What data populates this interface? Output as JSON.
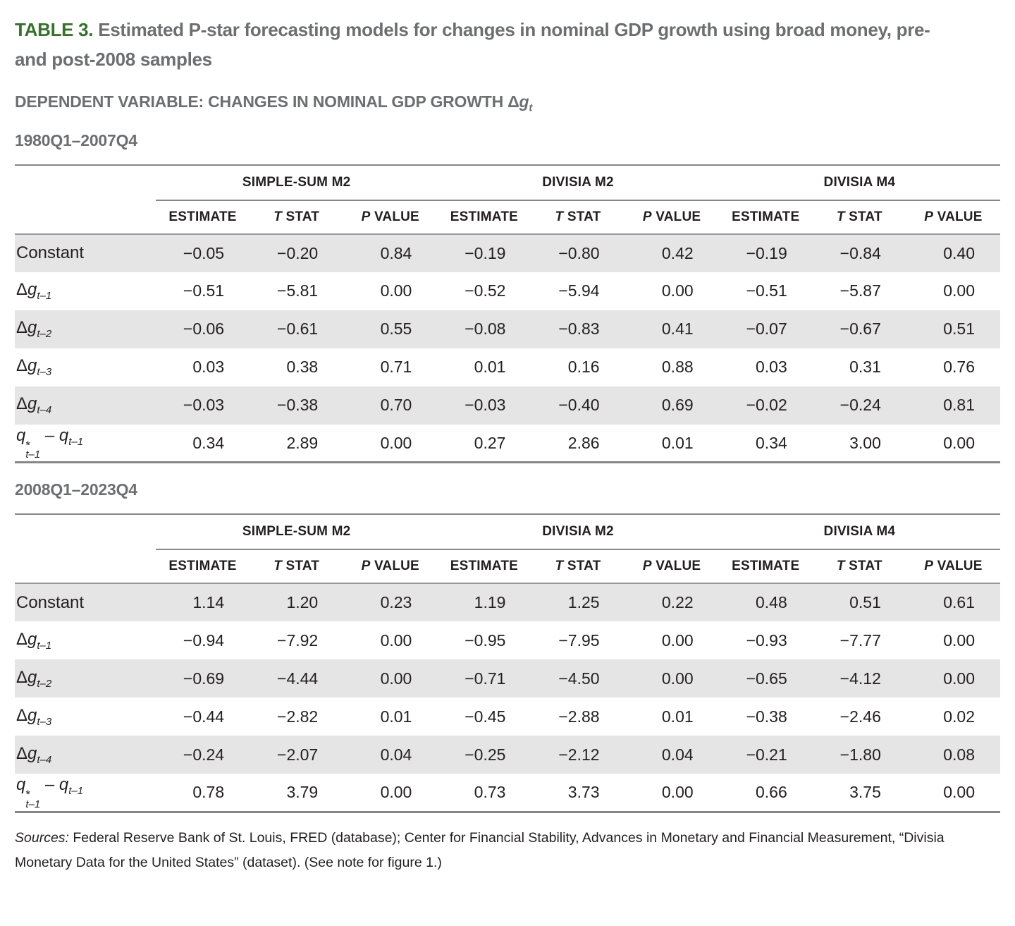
{
  "header": {
    "table_label": "TABLE 3.",
    "title": "Estimated P-star forecasting models for changes in nominal GDP growth using broad money, pre- and post-2008 samples",
    "dependent_variable": "DEPENDENT VARIABLE: CHANGES IN NOMINAL GDP GROWTH ",
    "symbol": {
      "delta": "Δ",
      "base": "g",
      "sub": "t"
    }
  },
  "colors": {
    "accent_green": "#37712d",
    "heading_gray": "#6d6e71",
    "text_black": "#231f20",
    "row_shade": "#e5e5e5",
    "rule_gray": "#85878a"
  },
  "tables": [
    {
      "id": "table-1980q1-2007q4",
      "section_heading": "1980Q1–2007Q4",
      "group_headers": [
        "SIMPLE-SUM M2",
        "DIVISIA M2",
        "DIVISIA M4"
      ],
      "sub_headers": [
        {
          "italic": "",
          "text": "ESTIMATE"
        },
        {
          "italic": "T",
          "text": " STAT"
        },
        {
          "italic": "P",
          "text": " VALUE"
        }
      ],
      "rows": [
        {
          "shaded": true,
          "label": {
            "kind": "text",
            "text": "Constant"
          },
          "values": [
            "−0.05",
            "−0.20",
            "0.84",
            "−0.19",
            "−0.80",
            "0.42",
            "−0.19",
            "−0.84",
            "0.40"
          ]
        },
        {
          "shaded": false,
          "label": {
            "kind": "lag",
            "delta": "Δ",
            "base": "g",
            "sub": "t–1"
          },
          "values": [
            "−0.51",
            "−5.81",
            "0.00",
            "−0.52",
            "−5.94",
            "0.00",
            "−0.51",
            "−5.87",
            "0.00"
          ]
        },
        {
          "shaded": true,
          "label": {
            "kind": "lag",
            "delta": "Δ",
            "base": "g",
            "sub": "t–2"
          },
          "values": [
            "−0.06",
            "−0.61",
            "0.55",
            "−0.08",
            "−0.83",
            "0.41",
            "−0.07",
            "−0.67",
            "0.51"
          ]
        },
        {
          "shaded": false,
          "label": {
            "kind": "lag",
            "delta": "Δ",
            "base": "g",
            "sub": "t–3"
          },
          "values": [
            "0.03",
            "0.38",
            "0.71",
            "0.01",
            "0.16",
            "0.88",
            "0.03",
            "0.31",
            "0.76"
          ]
        },
        {
          "shaded": true,
          "label": {
            "kind": "lag",
            "delta": "Δ",
            "base": "g",
            "sub": "t–4"
          },
          "values": [
            "−0.03",
            "−0.38",
            "0.70",
            "−0.03",
            "−0.40",
            "0.69",
            "−0.02",
            "−0.24",
            "0.81"
          ]
        },
        {
          "shaded": false,
          "label": {
            "kind": "qdiff",
            "base": "q",
            "star": "*",
            "sub": "t–1",
            "sep": " – ",
            "base2": "q",
            "sub2": "t–1"
          },
          "values": [
            "0.34",
            "2.89",
            "0.00",
            "0.27",
            "2.86",
            "0.01",
            "0.34",
            "3.00",
            "0.00"
          ]
        }
      ]
    },
    {
      "id": "table-2008q1-2023q4",
      "section_heading": "2008Q1–2023Q4",
      "group_headers": [
        "SIMPLE-SUM M2",
        "DIVISIA M2",
        "DIVISIA M4"
      ],
      "sub_headers": [
        {
          "italic": "",
          "text": "ESTIMATE"
        },
        {
          "italic": "T",
          "text": " STAT"
        },
        {
          "italic": "P",
          "text": " VALUE"
        }
      ],
      "rows": [
        {
          "shaded": true,
          "label": {
            "kind": "text",
            "text": "Constant"
          },
          "values": [
            "1.14",
            "1.20",
            "0.23",
            "1.19",
            "1.25",
            "0.22",
            "0.48",
            "0.51",
            "0.61"
          ]
        },
        {
          "shaded": false,
          "label": {
            "kind": "lag",
            "delta": "Δ",
            "base": "g",
            "sub": "t–1"
          },
          "values": [
            "−0.94",
            "−7.92",
            "0.00",
            "−0.95",
            "−7.95",
            "0.00",
            "−0.93",
            "−7.77",
            "0.00"
          ]
        },
        {
          "shaded": true,
          "label": {
            "kind": "lag",
            "delta": "Δ",
            "base": "g",
            "sub": "t–2"
          },
          "values": [
            "−0.69",
            "−4.44",
            "0.00",
            "−0.71",
            "−4.50",
            "0.00",
            "−0.65",
            "−4.12",
            "0.00"
          ]
        },
        {
          "shaded": false,
          "label": {
            "kind": "lag",
            "delta": "Δ",
            "base": "g",
            "sub": "t–3"
          },
          "values": [
            "−0.44",
            "−2.82",
            "0.01",
            "−0.45",
            "−2.88",
            "0.01",
            "−0.38",
            "−2.46",
            "0.02"
          ]
        },
        {
          "shaded": true,
          "label": {
            "kind": "lag",
            "delta": "Δ",
            "base": "g",
            "sub": "t–4"
          },
          "values": [
            "−0.24",
            "−2.07",
            "0.04",
            "−0.25",
            "−2.12",
            "0.04",
            "−0.21",
            "−1.80",
            "0.08"
          ]
        },
        {
          "shaded": false,
          "label": {
            "kind": "qdiff",
            "base": "q",
            "star": "*",
            "sub": "t–1",
            "sep": " – ",
            "base2": "q",
            "sub2": "t–1"
          },
          "values": [
            "0.78",
            "3.79",
            "0.00",
            "0.73",
            "3.73",
            "0.00",
            "0.66",
            "3.75",
            "0.00"
          ]
        }
      ]
    }
  ],
  "footer": {
    "sources_label": "Sources:",
    "sources_text": " Federal Reserve Bank of St. Louis, FRED (database); Center for Financial Stability, Advances in Monetary and Financial Measurement, “Divisia Monetary Data for the United States” (dataset). (See note for figure 1.)"
  }
}
